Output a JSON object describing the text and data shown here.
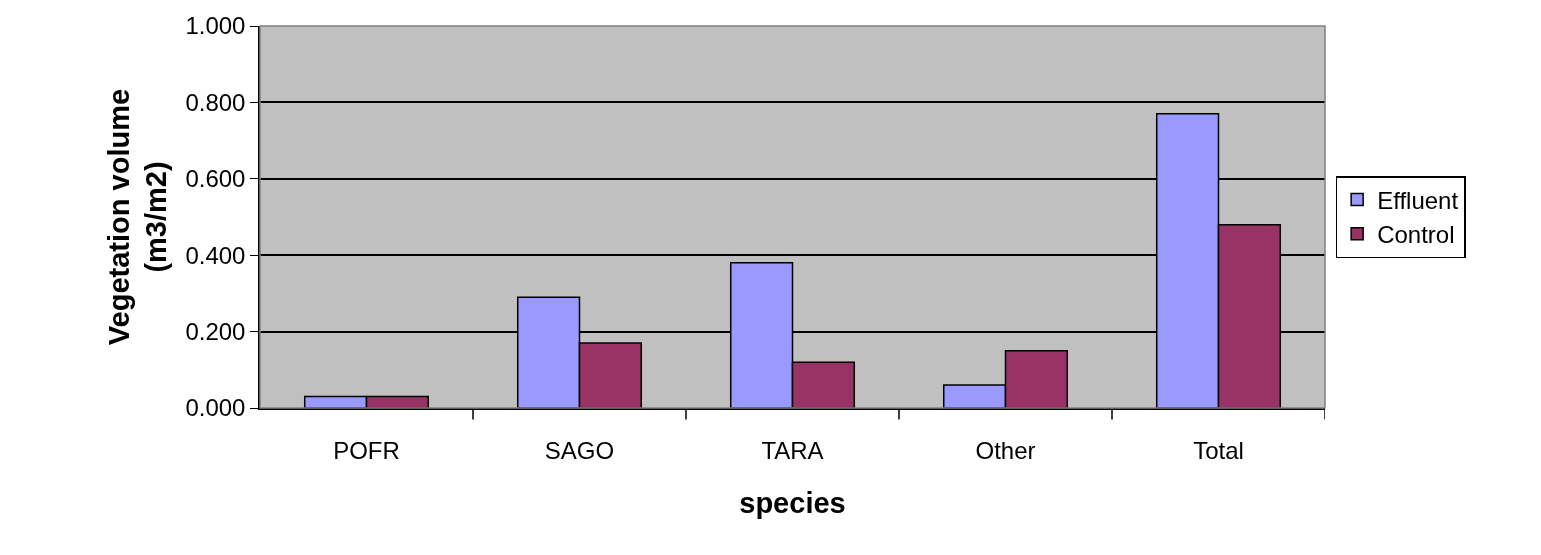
{
  "chart_data": {
    "type": "bar",
    "xlabel": "species",
    "ylabel": "Vegetation volume\n(m3/m2)",
    "categories": [
      "POFR",
      "SAGO",
      "TARA",
      "Other",
      "Total"
    ],
    "series": [
      {
        "name": "Effluent",
        "color": "#9999ff",
        "values": [
          0.03,
          0.29,
          0.38,
          0.06,
          0.77
        ]
      },
      {
        "name": "Control",
        "color": "#993366",
        "values": [
          0.03,
          0.17,
          0.12,
          0.15,
          0.48
        ]
      }
    ],
    "ylim": [
      0,
      1
    ],
    "yticks": [
      {
        "value": 0,
        "label": "0.000"
      },
      {
        "value": 0.2,
        "label": "0.200"
      },
      {
        "value": 0.4,
        "label": "0.400"
      },
      {
        "value": 0.6,
        "label": "0.600"
      },
      {
        "value": 0.8,
        "label": "0.800"
      },
      {
        "value": 1,
        "label": "1.000"
      }
    ],
    "grid": "y",
    "legend": "right"
  }
}
